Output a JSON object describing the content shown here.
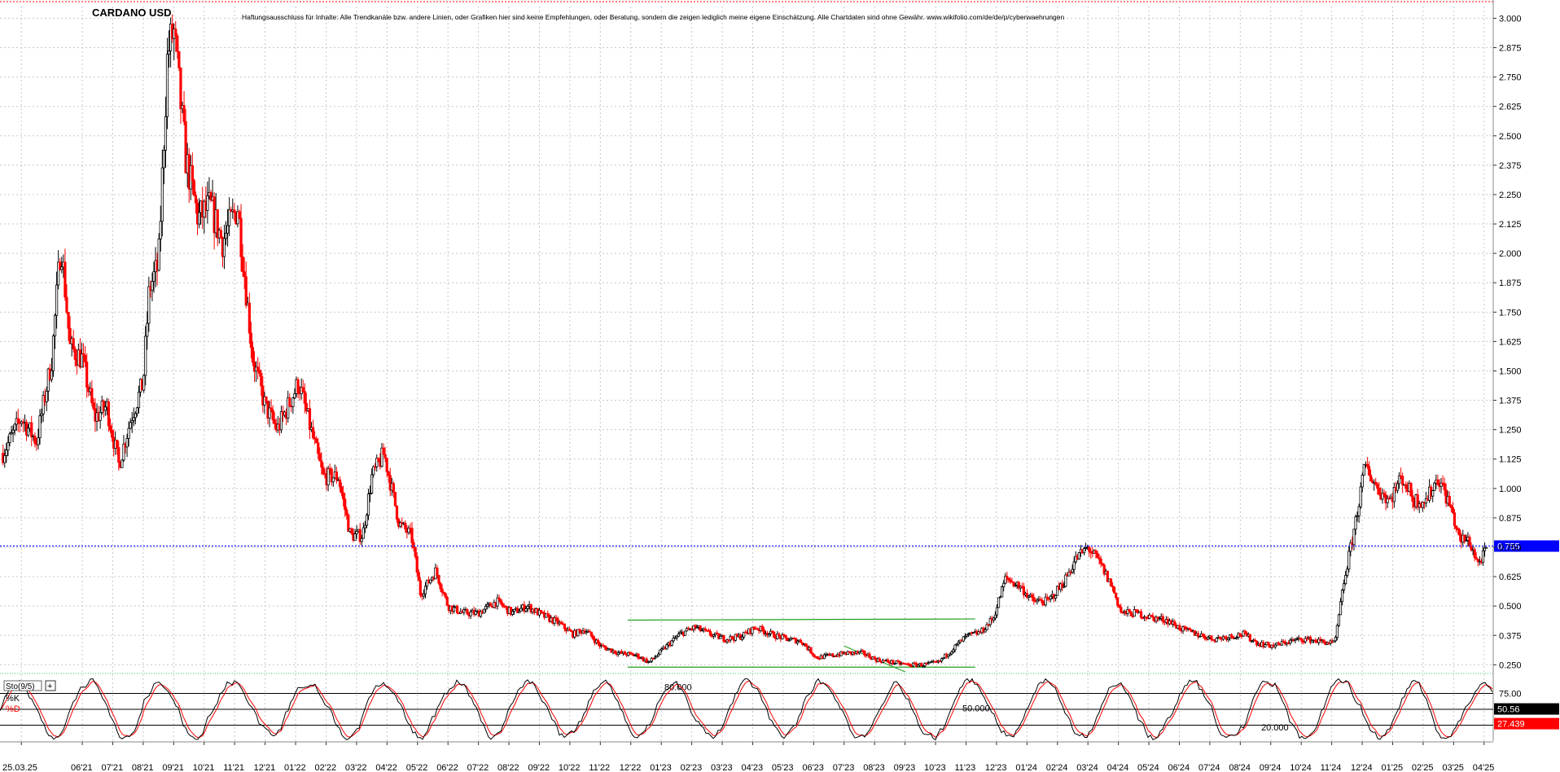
{
  "chart_data": {
    "type": "candlestick",
    "title": "CARDANO USD",
    "disclaimer": "Haftungsausschluss für Inhalte: Alle Trendkanäle bzw. andere Linien, oder Grafiken hier sind keine Empfehlungen, oder Beratung, sondern die zeigen lediglich meine eigene Einschätzung. Alle Chartdaten sind ohne Gewähr. www.wikifolio.com/de/de/p/cyberwaehrungen",
    "ylim": [
      0.22,
      3.05
    ],
    "y_ticks": [
      "3.000",
      "2.875",
      "2.750",
      "2.625",
      "2.500",
      "2.375",
      "2.250",
      "2.125",
      "2.000",
      "1.875",
      "1.750",
      "1.625",
      "1.500",
      "1.375",
      "1.250",
      "1.125",
      "1.000",
      "0.875",
      "0.750",
      "0.625",
      "0.500",
      "0.375",
      "0.250"
    ],
    "x_ticks": [
      "25.03.25",
      "06'21",
      "07'21",
      "08'21",
      "09'21",
      "10'21",
      "11'21",
      "12'21",
      "01'22",
      "02'22",
      "03'22",
      "04'22",
      "05'22",
      "06'22",
      "07'22",
      "08'22",
      "09'22",
      "10'22",
      "11'22",
      "12'22",
      "01'23",
      "02'23",
      "03'23",
      "04'23",
      "05'23",
      "06'23",
      "07'23",
      "08'23",
      "09'23",
      "10'23",
      "11'23",
      "12'23",
      "01'24",
      "02'24",
      "03'24",
      "04'24",
      "05'24",
      "06'24",
      "07'24",
      "08'24",
      "09'24",
      "10'24",
      "11'24",
      "12'24",
      "01'25",
      "02'25",
      "03'25",
      "04'25"
    ],
    "x_tick_months": [
      -1,
      1,
      2,
      3,
      4,
      5,
      6,
      7,
      8,
      9,
      10,
      11,
      12,
      13,
      14,
      15,
      16,
      17,
      18,
      19,
      20,
      21,
      22,
      23,
      24,
      25,
      26,
      27,
      28,
      29,
      30,
      31,
      32,
      33,
      34,
      35,
      36,
      37,
      38,
      39,
      40,
      41,
      42,
      43,
      44,
      45,
      46,
      47
    ],
    "x_range_months": [
      -1.7,
      47.3
    ],
    "price_anchors": [
      [
        -1.6,
        1.15
      ],
      [
        -1.0,
        1.3
      ],
      [
        -0.5,
        1.2
      ],
      [
        0,
        1.55
      ],
      [
        0.3,
        2.05
      ],
      [
        0.6,
        1.6
      ],
      [
        1.0,
        1.55
      ],
      [
        1.4,
        1.3
      ],
      [
        1.8,
        1.35
      ],
      [
        2.2,
        1.1
      ],
      [
        2.6,
        1.3
      ],
      [
        3.0,
        1.45
      ],
      [
        3.2,
        1.85
      ],
      [
        3.5,
        1.95
      ],
      [
        3.8,
        2.85
      ],
      [
        4.0,
        2.95
      ],
      [
        4.4,
        2.4
      ],
      [
        4.8,
        2.15
      ],
      [
        5.2,
        2.2
      ],
      [
        5.6,
        2.05
      ],
      [
        6.1,
        2.2
      ],
      [
        6.6,
        1.55
      ],
      [
        7.0,
        1.35
      ],
      [
        7.4,
        1.25
      ],
      [
        8.1,
        1.45
      ],
      [
        8.5,
        1.25
      ],
      [
        8.9,
        1.05
      ],
      [
        9.4,
        1.05
      ],
      [
        9.8,
        0.8
      ],
      [
        10.2,
        0.8
      ],
      [
        10.5,
        1.05
      ],
      [
        10.9,
        1.15
      ],
      [
        11.4,
        0.85
      ],
      [
        11.8,
        0.8
      ],
      [
        12.1,
        0.55
      ],
      [
        12.6,
        0.65
      ],
      [
        13.0,
        0.5
      ],
      [
        13.5,
        0.47
      ],
      [
        14.0,
        0.47
      ],
      [
        14.6,
        0.52
      ],
      [
        15.1,
        0.47
      ],
      [
        15.6,
        0.5
      ],
      [
        16.1,
        0.46
      ],
      [
        16.6,
        0.43
      ],
      [
        17.1,
        0.38
      ],
      [
        17.5,
        0.4
      ],
      [
        18.0,
        0.33
      ],
      [
        18.6,
        0.3
      ],
      [
        19.2,
        0.29
      ],
      [
        19.6,
        0.26
      ],
      [
        20.1,
        0.32
      ],
      [
        20.6,
        0.38
      ],
      [
        21.1,
        0.41
      ],
      [
        21.6,
        0.38
      ],
      [
        22.1,
        0.36
      ],
      [
        22.6,
        0.37
      ],
      [
        23.1,
        0.41
      ],
      [
        23.6,
        0.38
      ],
      [
        24.1,
        0.36
      ],
      [
        24.6,
        0.35
      ],
      [
        25.1,
        0.28
      ],
      [
        25.6,
        0.29
      ],
      [
        26.1,
        0.3
      ],
      [
        26.6,
        0.3
      ],
      [
        27.1,
        0.27
      ],
      [
        27.6,
        0.26
      ],
      [
        28.1,
        0.25
      ],
      [
        28.6,
        0.25
      ],
      [
        29.1,
        0.26
      ],
      [
        29.5,
        0.31
      ],
      [
        30.0,
        0.37
      ],
      [
        30.5,
        0.39
      ],
      [
        30.9,
        0.45
      ],
      [
        31.3,
        0.62
      ],
      [
        31.8,
        0.58
      ],
      [
        32.2,
        0.52
      ],
      [
        32.7,
        0.52
      ],
      [
        33.2,
        0.6
      ],
      [
        33.6,
        0.7
      ],
      [
        34.0,
        0.75
      ],
      [
        34.4,
        0.68
      ],
      [
        34.8,
        0.58
      ],
      [
        35.1,
        0.47
      ],
      [
        35.6,
        0.47
      ],
      [
        36.1,
        0.45
      ],
      [
        36.6,
        0.44
      ],
      [
        37.1,
        0.4
      ],
      [
        37.6,
        0.38
      ],
      [
        38.1,
        0.36
      ],
      [
        38.6,
        0.37
      ],
      [
        39.1,
        0.38
      ],
      [
        39.6,
        0.34
      ],
      [
        40.1,
        0.33
      ],
      [
        40.6,
        0.35
      ],
      [
        41.1,
        0.36
      ],
      [
        41.6,
        0.35
      ],
      [
        42.1,
        0.34
      ],
      [
        42.4,
        0.6
      ],
      [
        42.7,
        0.8
      ],
      [
        43.1,
        1.1
      ],
      [
        43.5,
        1.0
      ],
      [
        43.9,
        0.95
      ],
      [
        44.3,
        1.05
      ],
      [
        44.7,
        0.95
      ],
      [
        45.1,
        0.95
      ],
      [
        45.5,
        1.05
      ],
      [
        45.9,
        0.92
      ],
      [
        46.2,
        0.78
      ],
      [
        46.5,
        0.78
      ],
      [
        46.8,
        0.68
      ],
      [
        47.0,
        0.72
      ],
      [
        47.1,
        0.74
      ]
    ],
    "last_price": "0.755",
    "horizontal_lines": [
      {
        "name": "current-price-line",
        "y": 0.755,
        "color": "#3333ff",
        "style": "dotted"
      }
    ],
    "trend_lines": [
      {
        "name": "channel-top",
        "from": [
          18.9,
          0.44
        ],
        "to": [
          30.3,
          0.445
        ],
        "color": "#22a022"
      },
      {
        "name": "channel-bottom",
        "from": [
          18.9,
          0.24
        ],
        "to": [
          30.3,
          0.24
        ],
        "color": "#22a022"
      },
      {
        "name": "channel-inner",
        "from": [
          26.0,
          0.33
        ],
        "to": [
          28.0,
          0.22
        ],
        "color": "#22a022"
      }
    ],
    "indicator": {
      "label": "Sto(9/5)",
      "k_label": "%K",
      "d_label": "%D",
      "levels": [
        "75.00",
        "50.00",
        "25.00"
      ],
      "level_labels_inside": [
        "80.000",
        "50.000",
        "20.000"
      ],
      "k_last": "50.56",
      "d_last": "27.439"
    },
    "colors": {
      "up": "#000000",
      "down": "#ff0000",
      "k_line": "#000000",
      "d_line": "#ff0000",
      "grid": "#c8c8c8",
      "price_line": "#3333ff",
      "trend": "#22a022"
    }
  }
}
